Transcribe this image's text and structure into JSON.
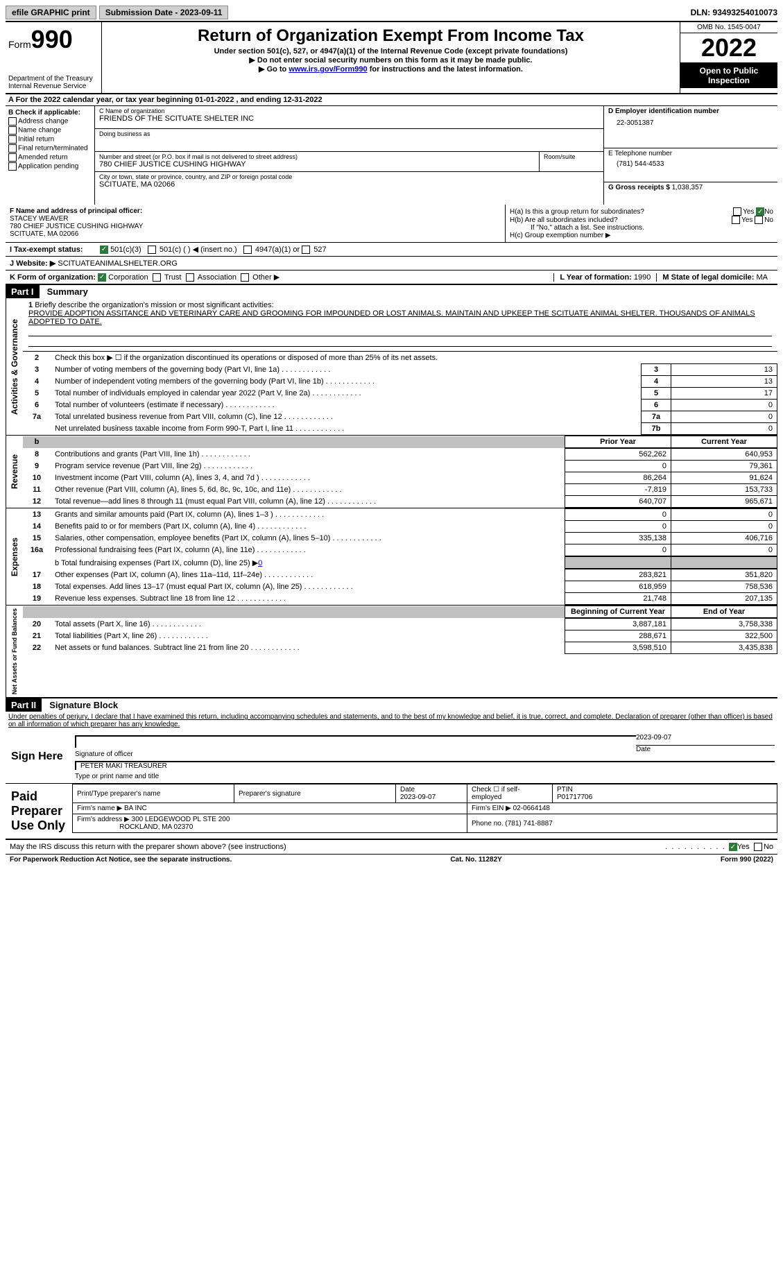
{
  "topbar": {
    "efile": "efile GRAPHIC print",
    "submission_label": "Submission Date - 2023-09-11",
    "dln_label": "DLN: 93493254010073"
  },
  "header": {
    "form_word": "Form",
    "form_num": "990",
    "dept": "Department of the Treasury",
    "irs": "Internal Revenue Service",
    "title": "Return of Organization Exempt From Income Tax",
    "subtitle": "Under section 501(c), 527, or 4947(a)(1) of the Internal Revenue Code (except private foundations)",
    "note1": "▶ Do not enter social security numbers on this form as it may be made public.",
    "note2_pre": "▶ Go to ",
    "note2_link": "www.irs.gov/Form990",
    "note2_post": " for instructions and the latest information.",
    "omb": "OMB No. 1545-0047",
    "year": "2022",
    "open": "Open to Public Inspection"
  },
  "row_a": "A For the 2022 calendar year, or tax year beginning 01-01-2022   , and ending 12-31-2022",
  "col_b": {
    "label": "B Check if applicable:",
    "items": [
      "Address change",
      "Name change",
      "Initial return",
      "Final return/terminated",
      "Amended return",
      "Application pending"
    ]
  },
  "col_c": {
    "name_lbl": "C Name of organization",
    "name": "FRIENDS OF THE SCITUATE SHELTER INC",
    "dba_lbl": "Doing business as",
    "dba": "",
    "addr_lbl": "Number and street (or P.O. box if mail is not delivered to street address)",
    "addr": "780 CHIEF JUSTICE CUSHING HIGHWAY",
    "suite_lbl": "Room/suite",
    "city_lbl": "City or town, state or province, country, and ZIP or foreign postal code",
    "city": "SCITUATE, MA  02066"
  },
  "col_d": {
    "ein_lbl": "D Employer identification number",
    "ein": "22-3051387",
    "tel_lbl": "E Telephone number",
    "tel": "(781) 544-4533",
    "gross_lbl": "G Gross receipts $",
    "gross": "1,038,357"
  },
  "row_f": {
    "lbl": "F Name and address of principal officer:",
    "name": "STACEY WEAVER",
    "addr1": "780 CHIEF JUSTICE CUSHING HIGHWAY",
    "addr2": "SCITUATE, MA  02066"
  },
  "row_h": {
    "ha": "H(a)  Is this a group return for subordinates?",
    "hb": "H(b)  Are all subordinates included?",
    "hb_note": "If \"No,\" attach a list. See instructions.",
    "hc": "H(c)  Group exemption number ▶",
    "yes": "Yes",
    "no": "No"
  },
  "row_i": {
    "lbl": "I  Tax-exempt status:",
    "opt1": "501(c)(3)",
    "opt2": "501(c) (  ) ◀ (insert no.)",
    "opt3": "4947(a)(1) or",
    "opt4": "527"
  },
  "row_j": {
    "lbl": "J  Website: ▶",
    "val": "SCITUATEANIMALSHELTER.ORG"
  },
  "row_k": {
    "lbl": "K Form of organization:",
    "opts": [
      "Corporation",
      "Trust",
      "Association",
      "Other ▶"
    ],
    "l_lbl": "L Year of formation:",
    "l_val": "1990",
    "m_lbl": "M State of legal domicile:",
    "m_val": "MA"
  },
  "part1": {
    "hdr": "Part I",
    "title": "Summary",
    "vert1": "Activities & Governance",
    "vert2": "Revenue",
    "vert3": "Expenses",
    "vert4": "Net Assets or Fund Balances",
    "line1_lbl": "Briefly describe the organization's mission or most significant activities:",
    "line1_txt": "PROVIDE ADOPTION ASSITANCE AND VETERINARY CARE AND GROOMING FOR IMPOUNDED OR LOST ANIMALS. MAINTAIN AND UPKEEP THE SCITUATE ANIMAL SHELTER. THOUSANDS OF ANIMALS ADOPTED TO DATE.",
    "line2": "Check this box ▶ ☐ if the organization discontinued its operations or disposed of more than 25% of its net assets.",
    "rows_gov": [
      {
        "n": "3",
        "t": "Number of voting members of the governing body (Part VI, line 1a)",
        "b": "3",
        "v": "13"
      },
      {
        "n": "4",
        "t": "Number of independent voting members of the governing body (Part VI, line 1b)",
        "b": "4",
        "v": "13"
      },
      {
        "n": "5",
        "t": "Total number of individuals employed in calendar year 2022 (Part V, line 2a)",
        "b": "5",
        "v": "17"
      },
      {
        "n": "6",
        "t": "Total number of volunteers (estimate if necessary)",
        "b": "6",
        "v": "0"
      },
      {
        "n": "7a",
        "t": "Total unrelated business revenue from Part VIII, column (C), line 12",
        "b": "7a",
        "v": "0"
      },
      {
        "n": "",
        "t": "Net unrelated business taxable income from Form 990-T, Part I, line 11",
        "b": "7b",
        "v": "0"
      }
    ],
    "col_prior": "Prior Year",
    "col_curr": "Current Year",
    "rows_rev": [
      {
        "n": "8",
        "t": "Contributions and grants (Part VIII, line 1h)",
        "p": "562,262",
        "c": "640,953"
      },
      {
        "n": "9",
        "t": "Program service revenue (Part VIII, line 2g)",
        "p": "0",
        "c": "79,361"
      },
      {
        "n": "10",
        "t": "Investment income (Part VIII, column (A), lines 3, 4, and 7d )",
        "p": "86,264",
        "c": "91,624"
      },
      {
        "n": "11",
        "t": "Other revenue (Part VIII, column (A), lines 5, 6d, 8c, 9c, 10c, and 11e)",
        "p": "-7,819",
        "c": "153,733"
      },
      {
        "n": "12",
        "t": "Total revenue—add lines 8 through 11 (must equal Part VIII, column (A), line 12)",
        "p": "640,707",
        "c": "965,671"
      }
    ],
    "rows_exp": [
      {
        "n": "13",
        "t": "Grants and similar amounts paid (Part IX, column (A), lines 1–3 )",
        "p": "0",
        "c": "0"
      },
      {
        "n": "14",
        "t": "Benefits paid to or for members (Part IX, column (A), line 4)",
        "p": "0",
        "c": "0"
      },
      {
        "n": "15",
        "t": "Salaries, other compensation, employee benefits (Part IX, column (A), lines 5–10)",
        "p": "335,138",
        "c": "406,716"
      },
      {
        "n": "16a",
        "t": "Professional fundraising fees (Part IX, column (A), line 11e)",
        "p": "0",
        "c": "0"
      }
    ],
    "row_16b_lbl": "b  Total fundraising expenses (Part IX, column (D), line 25) ▶",
    "row_16b_val": "0",
    "rows_exp2": [
      {
        "n": "17",
        "t": "Other expenses (Part IX, column (A), lines 11a–11d, 11f–24e)",
        "p": "283,821",
        "c": "351,820"
      },
      {
        "n": "18",
        "t": "Total expenses. Add lines 13–17 (must equal Part IX, column (A), line 25)",
        "p": "618,959",
        "c": "758,536"
      },
      {
        "n": "19",
        "t": "Revenue less expenses. Subtract line 18 from line 12",
        "p": "21,748",
        "c": "207,135"
      }
    ],
    "col_beg": "Beginning of Current Year",
    "col_end": "End of Year",
    "rows_net": [
      {
        "n": "20",
        "t": "Total assets (Part X, line 16)",
        "p": "3,887,181",
        "c": "3,758,338"
      },
      {
        "n": "21",
        "t": "Total liabilities (Part X, line 26)",
        "p": "288,671",
        "c": "322,500"
      },
      {
        "n": "22",
        "t": "Net assets or fund balances. Subtract line 21 from line 20",
        "p": "3,598,510",
        "c": "3,435,838"
      }
    ]
  },
  "part2": {
    "hdr": "Part II",
    "title": "Signature Block",
    "decl": "Under penalties of perjury, I declare that I have examined this return, including accompanying schedules and statements, and to the best of my knowledge and belief, it is true, correct, and complete. Declaration of preparer (other than officer) is based on all information of which preparer has any knowledge.",
    "sign_here": "Sign Here",
    "sig_officer": "Signature of officer",
    "sig_date": "2023-09-07",
    "sig_date_lbl": "Date",
    "officer_name": "PETER MAKI TREASURER",
    "type_name_lbl": "Type or print name and title",
    "paid": "Paid Preparer Use Only",
    "prep_name_lbl": "Print/Type preparer's name",
    "prep_sig_lbl": "Preparer's signature",
    "prep_date_lbl": "Date",
    "prep_date": "2023-09-07",
    "prep_check": "Check ☐ if self-employed",
    "ptin_lbl": "PTIN",
    "ptin": "P01717706",
    "firm_name_lbl": "Firm's name    ▶",
    "firm_name": "BA INC",
    "firm_ein_lbl": "Firm's EIN ▶",
    "firm_ein": "02-0664148",
    "firm_addr_lbl": "Firm's address ▶",
    "firm_addr1": "300 LEDGEWOOD PL STE 200",
    "firm_addr2": "ROCKLAND, MA  02370",
    "phone_lbl": "Phone no.",
    "phone": "(781) 741-8887",
    "discuss": "May the IRS discuss this return with the preparer shown above? (see instructions)",
    "yes": "Yes",
    "no": "No"
  },
  "footer": {
    "left": "For Paperwork Reduction Act Notice, see the separate instructions.",
    "mid": "Cat. No. 11282Y",
    "right": "Form 990 (2022)"
  }
}
